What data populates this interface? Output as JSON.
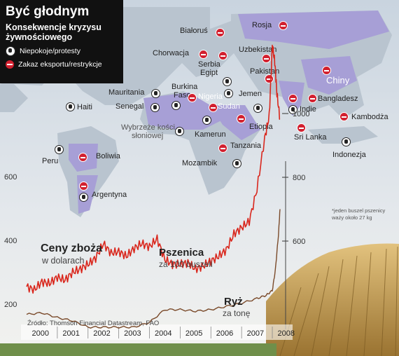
{
  "title": "Być głodnym",
  "subtitle": "Konsekwencje kryzysu żywnościowego",
  "legend": {
    "protest": "Niepokoje/protesty",
    "ban": "Zakaz eksportu/restrykcje"
  },
  "map": {
    "ban_countries": [
      "Białoruś",
      "Rosja",
      "Chorwacja",
      "Serbia",
      "Egipt",
      "Uzbekistan",
      "Pakistan",
      "Chiny",
      "Indie",
      "Bangladesz",
      "Kambodża",
      "Sri Lanka",
      "Boliwia",
      "Argentyna",
      "Nigeria",
      "Sudan",
      "Tanzania",
      "Etiopia",
      "Kamerun"
    ],
    "labels": [
      "Białoruś",
      "Rosja",
      "Chorwacja",
      "Serbia",
      "Egipt",
      "Uzbekistan",
      "Pakistan",
      "Chiny",
      "Mauritania",
      "Burkina",
      "Faso",
      "Nigeria",
      "Jemen",
      "Bangladesz",
      "Haiti",
      "Senegal",
      "Sudan",
      "Indie",
      "Kambodża",
      "Wybrzeże kości",
      "słoniowej",
      "Etiopia",
      "Sri Lanka",
      "Kamerun",
      "Indonezja",
      "Peru",
      "Boliwia",
      "Tanzania",
      "Mozambik",
      "Argentyna"
    ]
  },
  "chart_data": {
    "type": "line",
    "x_ticks": [
      "2000",
      "2001",
      "2002",
      "2003",
      "2004",
      "2005",
      "2006",
      "2007",
      "2008"
    ],
    "left_axis": {
      "ticks": [
        200,
        400,
        600
      ]
    },
    "right_axis": {
      "ticks": [
        600,
        800,
        1000
      ]
    },
    "series": [
      {
        "name": "Ceny zboża",
        "name_sub": "w dolarach",
        "label": "Pszenica",
        "label_sub": "za 100 buszeli",
        "color": "#d9261c",
        "axis": "left",
        "x": [
          2000.0,
          2000.25,
          2000.5,
          2000.75,
          2001.0,
          2001.25,
          2001.5,
          2001.75,
          2002.0,
          2002.25,
          2002.5,
          2002.75,
          2003.0,
          2003.25,
          2003.5,
          2003.75,
          2004.0,
          2004.25,
          2004.5,
          2004.75,
          2005.0,
          2005.25,
          2005.5,
          2005.75,
          2006.0,
          2006.25,
          2006.5,
          2006.75,
          2007.0,
          2007.25,
          2007.5,
          2007.75,
          2007.9,
          2008.0,
          2008.08,
          2008.15,
          2008.25
        ],
        "y": [
          255,
          245,
          270,
          265,
          285,
          275,
          300,
          310,
          325,
          345,
          390,
          360,
          365,
          350,
          375,
          390,
          380,
          405,
          340,
          325,
          325,
          330,
          310,
          320,
          335,
          350,
          370,
          420,
          440,
          460,
          560,
          720,
          790,
          1010,
          960,
          860,
          780
        ]
      },
      {
        "name": "Ryż",
        "name_sub": "za tonę",
        "color": "#7a4a2a",
        "axis": "right",
        "x": [
          2000.0,
          2000.5,
          2001.0,
          2001.5,
          2002.0,
          2002.5,
          2003.0,
          2003.5,
          2004.0,
          2004.5,
          2005.0,
          2005.5,
          2006.0,
          2006.5,
          2007.0,
          2007.5,
          2007.8,
          2008.0,
          2008.1,
          2008.2,
          2008.25
        ],
        "y": [
          370,
          375,
          360,
          350,
          330,
          330,
          330,
          330,
          345,
          385,
          385,
          380,
          385,
          395,
          405,
          420,
          430,
          445,
          510,
          620,
          700
        ]
      }
    ],
    "note": "*jeden buszel pszenicy waży około 27 kg",
    "source": "Źródło: Thomson Financial Datastream, FAO"
  }
}
